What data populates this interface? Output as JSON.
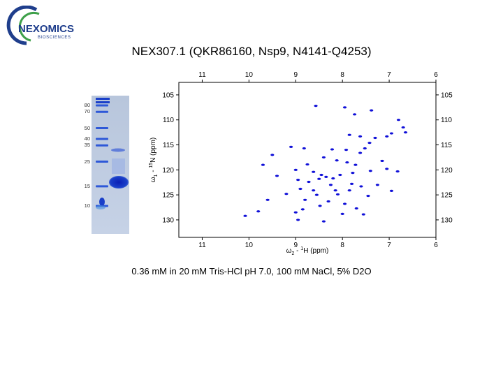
{
  "logo": {
    "name": "NEXOMICS",
    "sub": "BIOSCIENCES",
    "colors": {
      "ring_blue": "#1f3e8c",
      "ring_green": "#3ea04a"
    }
  },
  "title": "NEX307.1 (QKR86160, Nsp9, N4141-Q4253)",
  "caption": "0.36 mM in 20 mM Tris-HCl pH 7.0, 100 mM NaCl, 5% D2O",
  "gel": {
    "marker_labels": [
      "80",
      "70",
      "50",
      "40",
      "35",
      "25",
      "15",
      "10"
    ],
    "marker_kda": [
      80,
      70,
      50,
      40,
      35,
      25,
      15,
      10
    ],
    "sample_main_band_kda": 15,
    "colors": {
      "background": "#c9d4e4",
      "band": "#1a3fc9"
    }
  },
  "chart_data": {
    "type": "scatter",
    "title": "",
    "xlabel_omega": "ω",
    "xlabel_sub": "2",
    "xlabel_rest": " - ",
    "xlabel_sup": "1",
    "xlabel_nuc": "H  (ppm)",
    "ylabel_omega": "ω",
    "ylabel_sub": "1",
    "ylabel_rest": " - ",
    "ylabel_sup": "15",
    "ylabel_nuc": "N  (ppm)",
    "xlim": [
      11.5,
      6
    ],
    "ylim": [
      102.5,
      133.5
    ],
    "x_ticks": [
      11,
      10,
      9,
      8,
      7,
      6
    ],
    "y_ticks": [
      105,
      110,
      115,
      120,
      125,
      130
    ],
    "peak_color": "#1010d8",
    "peaks": [
      {
        "x": 8.57,
        "y": 107.2
      },
      {
        "x": 7.95,
        "y": 107.5
      },
      {
        "x": 7.74,
        "y": 108.9
      },
      {
        "x": 7.38,
        "y": 108.1
      },
      {
        "x": 6.8,
        "y": 110.0
      },
      {
        "x": 6.7,
        "y": 111.5
      },
      {
        "x": 6.65,
        "y": 112.5
      },
      {
        "x": 6.95,
        "y": 112.7
      },
      {
        "x": 7.05,
        "y": 113.3
      },
      {
        "x": 7.3,
        "y": 113.6
      },
      {
        "x": 7.62,
        "y": 113.3
      },
      {
        "x": 7.85,
        "y": 113.0
      },
      {
        "x": 9.1,
        "y": 115.4
      },
      {
        "x": 8.82,
        "y": 115.7
      },
      {
        "x": 8.22,
        "y": 115.9
      },
      {
        "x": 7.92,
        "y": 116.0
      },
      {
        "x": 7.52,
        "y": 115.7
      },
      {
        "x": 7.42,
        "y": 114.6
      },
      {
        "x": 7.62,
        "y": 116.6
      },
      {
        "x": 9.5,
        "y": 117.0
      },
      {
        "x": 8.4,
        "y": 117.5
      },
      {
        "x": 8.12,
        "y": 118.1
      },
      {
        "x": 7.9,
        "y": 118.5
      },
      {
        "x": 7.72,
        "y": 119.0
      },
      {
        "x": 7.15,
        "y": 118.2
      },
      {
        "x": 8.75,
        "y": 118.9
      },
      {
        "x": 9.7,
        "y": 119.0
      },
      {
        "x": 9.0,
        "y": 120.0
      },
      {
        "x": 8.62,
        "y": 120.4
      },
      {
        "x": 8.45,
        "y": 121.0
      },
      {
        "x": 8.5,
        "y": 121.8
      },
      {
        "x": 8.35,
        "y": 121.4
      },
      {
        "x": 8.2,
        "y": 121.7
      },
      {
        "x": 8.05,
        "y": 121.0
      },
      {
        "x": 7.78,
        "y": 120.6
      },
      {
        "x": 7.4,
        "y": 120.2
      },
      {
        "x": 7.05,
        "y": 119.8
      },
      {
        "x": 6.82,
        "y": 120.3
      },
      {
        "x": 9.4,
        "y": 121.2
      },
      {
        "x": 8.95,
        "y": 122.0
      },
      {
        "x": 8.72,
        "y": 122.4
      },
      {
        "x": 8.25,
        "y": 123.0
      },
      {
        "x": 7.8,
        "y": 122.8
      },
      {
        "x": 7.25,
        "y": 123.0
      },
      {
        "x": 7.6,
        "y": 123.3
      },
      {
        "x": 8.9,
        "y": 123.8
      },
      {
        "x": 8.62,
        "y": 124.1
      },
      {
        "x": 8.15,
        "y": 124.1
      },
      {
        "x": 7.85,
        "y": 124.1
      },
      {
        "x": 9.2,
        "y": 124.8
      },
      {
        "x": 8.55,
        "y": 125.0
      },
      {
        "x": 8.1,
        "y": 124.9
      },
      {
        "x": 7.45,
        "y": 125.2
      },
      {
        "x": 8.8,
        "y": 126.0
      },
      {
        "x": 8.3,
        "y": 126.3
      },
      {
        "x": 9.6,
        "y": 126.0
      },
      {
        "x": 7.95,
        "y": 126.8
      },
      {
        "x": 8.48,
        "y": 127.2
      },
      {
        "x": 7.7,
        "y": 127.7
      },
      {
        "x": 8.85,
        "y": 127.9
      },
      {
        "x": 9.0,
        "y": 128.5
      },
      {
        "x": 8.0,
        "y": 128.8
      },
      {
        "x": 9.8,
        "y": 128.3
      },
      {
        "x": 10.08,
        "y": 129.2
      },
      {
        "x": 8.95,
        "y": 130.0
      },
      {
        "x": 8.4,
        "y": 130.3
      },
      {
        "x": 7.55,
        "y": 128.9
      },
      {
        "x": 6.95,
        "y": 124.2
      }
    ]
  }
}
